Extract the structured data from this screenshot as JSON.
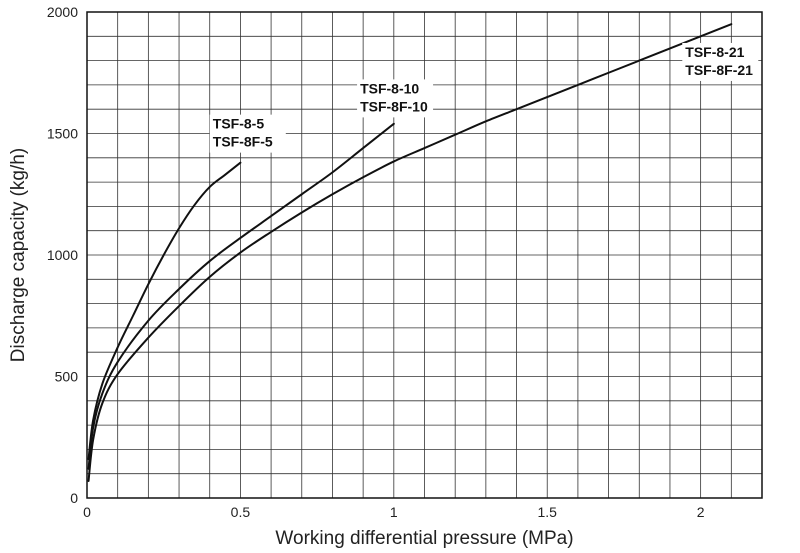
{
  "chart_data": {
    "type": "line",
    "title": "",
    "xlabel": "Working differential pressure (MPa)",
    "ylabel": "Discharge capacity (kg/h)",
    "xlim": [
      0,
      2.2
    ],
    "ylim": [
      0,
      2000
    ],
    "grid": true,
    "x_minor_step": 0.1,
    "y_minor_step": 100,
    "x_ticks": [
      {
        "value": 0,
        "label": "0"
      },
      {
        "value": 0.5,
        "label": "0.5"
      },
      {
        "value": 1,
        "label": "1"
      },
      {
        "value": 1.5,
        "label": "1.5"
      },
      {
        "value": 2,
        "label": "2"
      }
    ],
    "y_ticks": [
      {
        "value": 0,
        "label": "0"
      },
      {
        "value": 500,
        "label": "500"
      },
      {
        "value": 1000,
        "label": "1000"
      },
      {
        "value": 1500,
        "label": "1500"
      },
      {
        "value": 2000,
        "label": "2000"
      }
    ],
    "series": [
      {
        "name": "TSF-8-5 / TSF-8F-5",
        "labels": [
          "TSF-8-5",
          "TSF-8F-5"
        ],
        "x": [
          0.005,
          0.02,
          0.05,
          0.1,
          0.15,
          0.2,
          0.25,
          0.3,
          0.35,
          0.4,
          0.45,
          0.5
        ],
        "y": [
          160,
          320,
          470,
          620,
          750,
          880,
          1000,
          1110,
          1205,
          1280,
          1330,
          1380
        ]
      },
      {
        "name": "TSF-8-10 / TSF-8F-10",
        "labels": [
          "TSF-8-10",
          "TSF-8F-10"
        ],
        "x": [
          0.005,
          0.02,
          0.05,
          0.1,
          0.2,
          0.3,
          0.4,
          0.5,
          0.6,
          0.7,
          0.8,
          0.9,
          1.0
        ],
        "y": [
          120,
          290,
          430,
          560,
          730,
          860,
          975,
          1070,
          1160,
          1250,
          1340,
          1440,
          1540
        ]
      },
      {
        "name": "TSF-8-21 / TSF-8F-21",
        "labels": [
          "TSF-8-21",
          "TSF-8F-21"
        ],
        "x": [
          0.005,
          0.02,
          0.05,
          0.1,
          0.2,
          0.3,
          0.4,
          0.5,
          0.6,
          0.7,
          0.8,
          0.9,
          1.0,
          1.1,
          1.2,
          1.3,
          1.4,
          1.5,
          1.6,
          1.7,
          1.8,
          1.9,
          2.0,
          2.1
        ],
        "y": [
          70,
          240,
          390,
          510,
          660,
          790,
          910,
          1010,
          1095,
          1175,
          1250,
          1320,
          1385,
          1440,
          1495,
          1550,
          1600,
          1650,
          1700,
          1750,
          1800,
          1850,
          1900,
          1950
        ]
      }
    ],
    "annotations": [
      {
        "series": 0,
        "lines": [
          "TSF-8-5",
          "TSF-8F-5"
        ],
        "at_x": 0.41,
        "at_y": 1520
      },
      {
        "series": 1,
        "lines": [
          "TSF-8-10",
          "TSF-8F-10"
        ],
        "at_x": 0.89,
        "at_y": 1665
      },
      {
        "series": 2,
        "lines": [
          "TSF-8-21",
          "TSF-8F-21"
        ],
        "at_x": 1.95,
        "at_y": 1815
      }
    ],
    "colors": {
      "line": "#111111",
      "grid": "#333333",
      "frame": "#111111",
      "label_background": "#ffffff"
    }
  }
}
